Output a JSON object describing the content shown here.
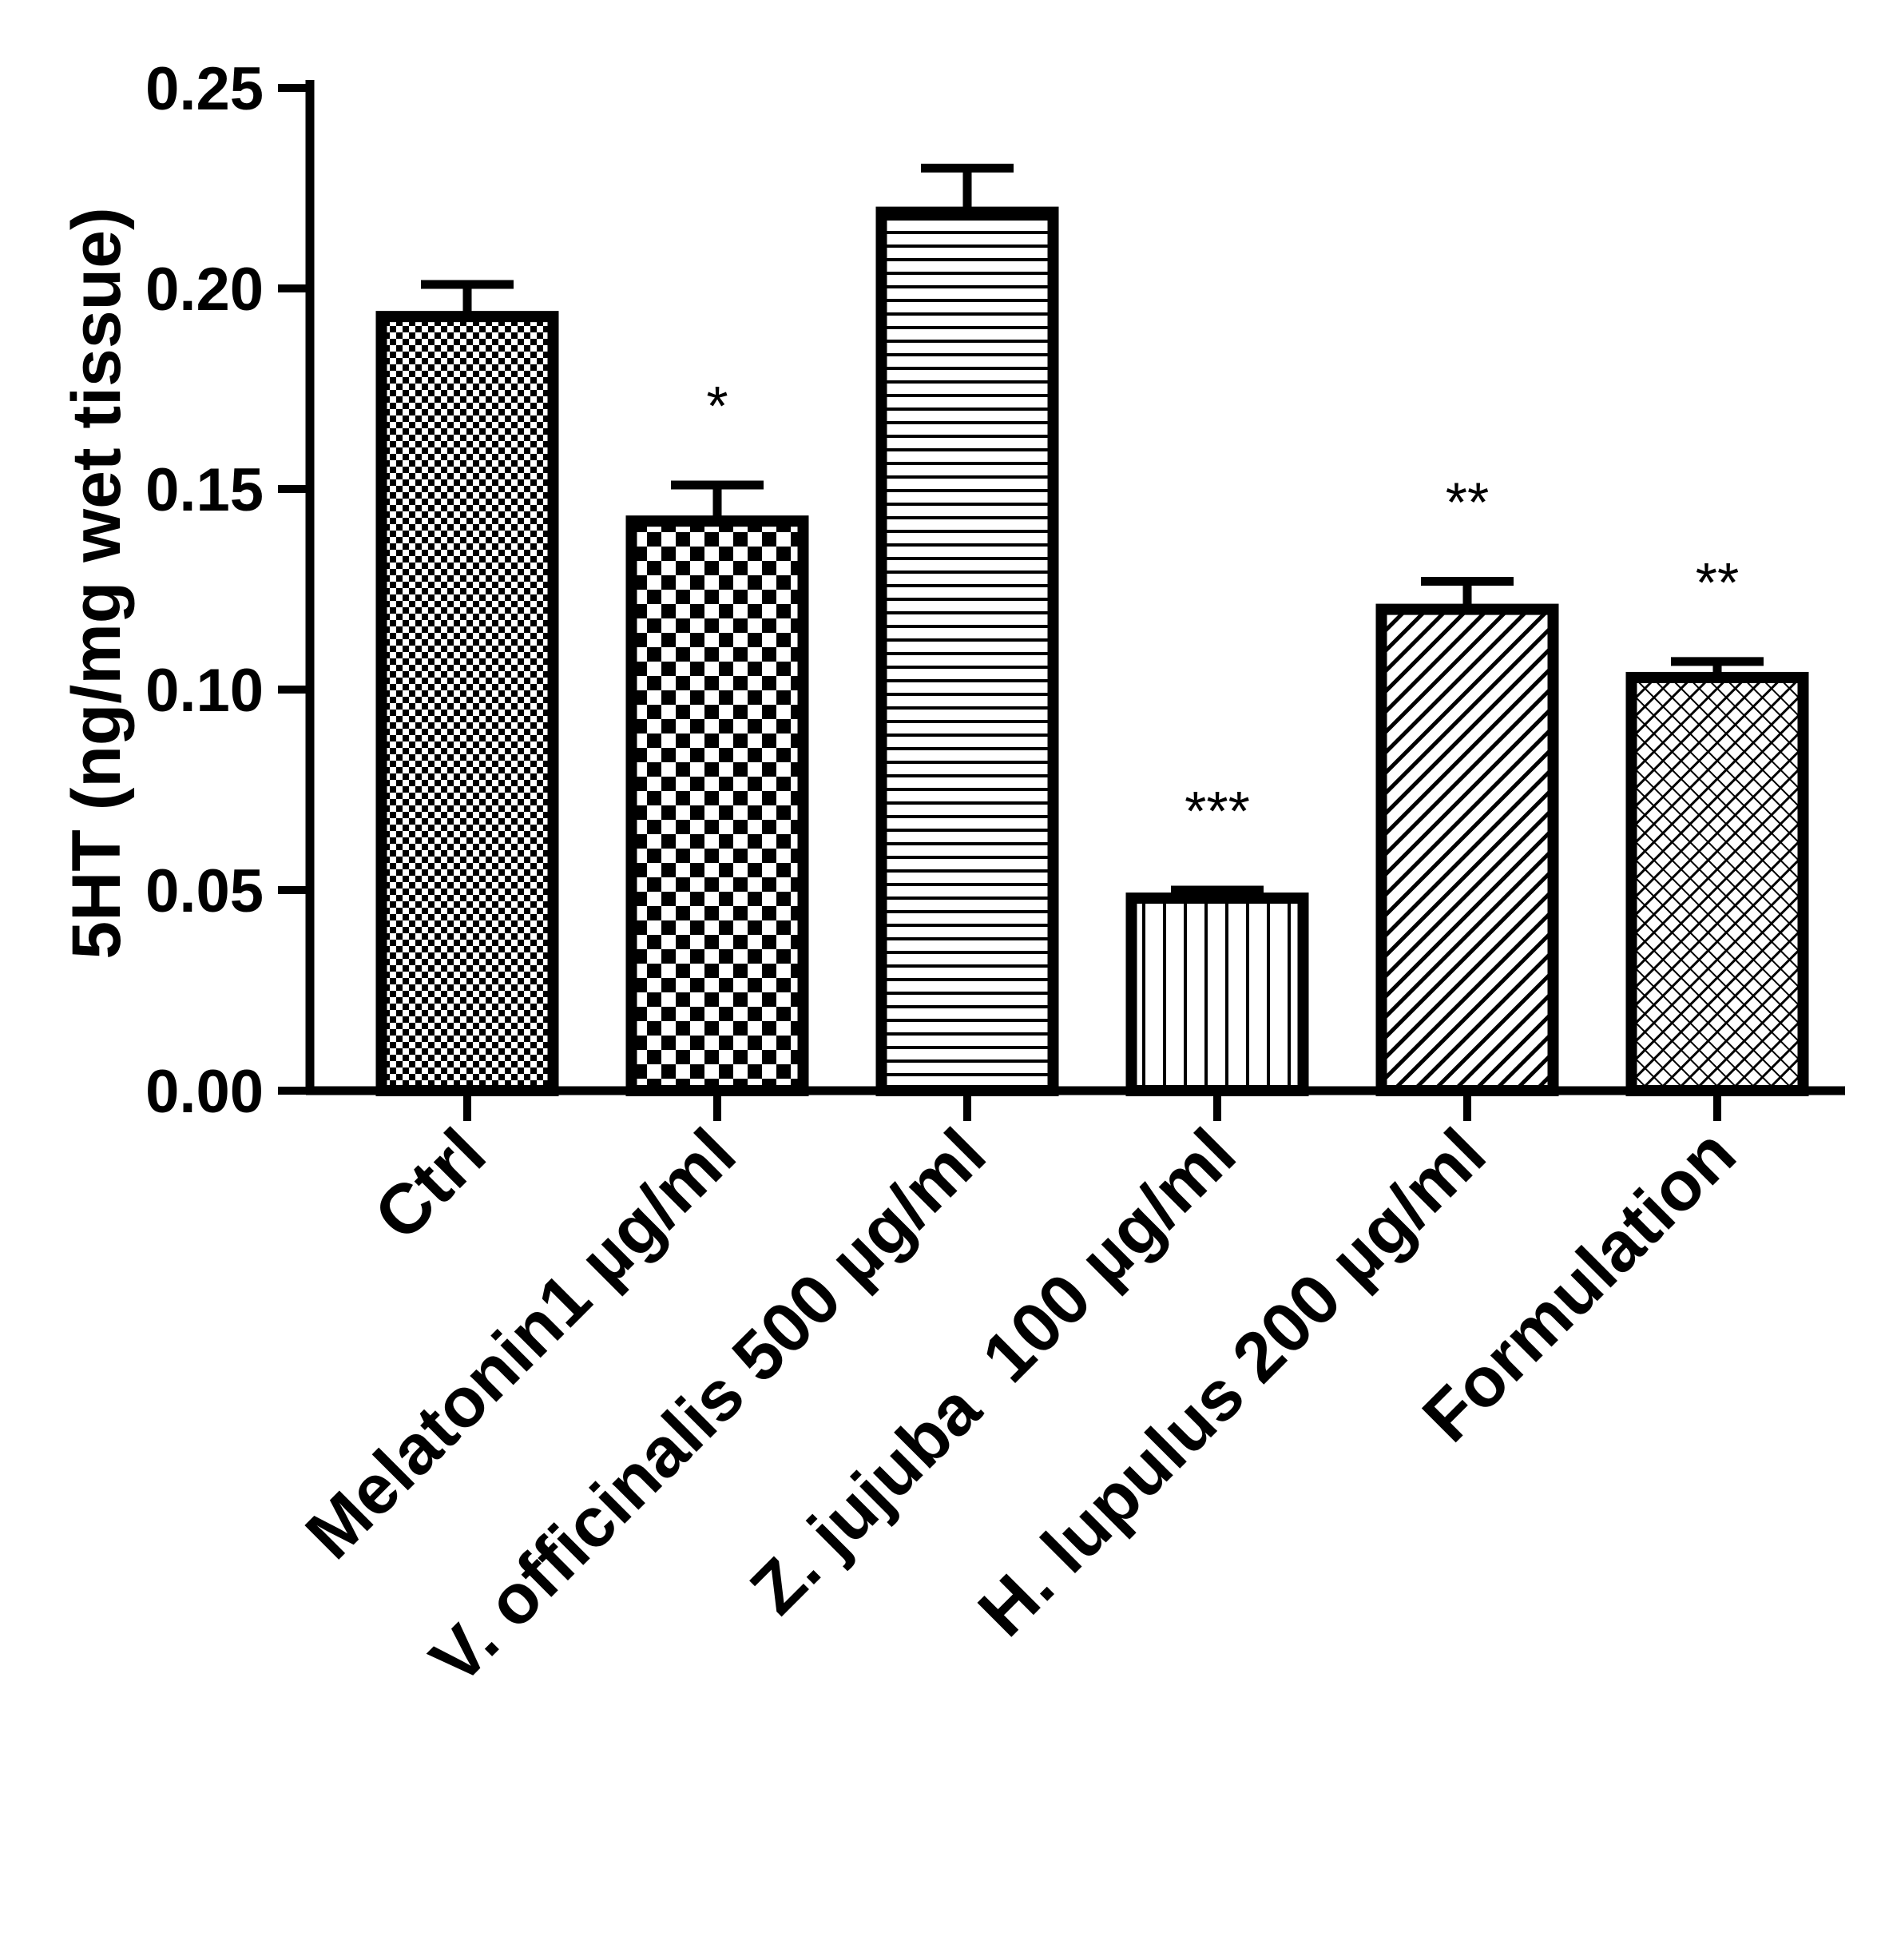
{
  "chart_data": {
    "type": "bar",
    "title": "",
    "xlabel": "",
    "ylabel": "5HT (ng/mg wet tissue)",
    "ylim": [
      0,
      0.25
    ],
    "yticks": [
      "0.00",
      "0.05",
      "0.10",
      "0.15",
      "0.20",
      "0.25"
    ],
    "grid": false,
    "categories": [
      "Ctrl",
      "Melatonin1 µg/ml",
      "V. officinalis 500 µg/ml",
      "Z. jujuba  100 µg/ml",
      "H. lupulus 200 µg/ml",
      "Formulation"
    ],
    "values": [
      0.193,
      0.142,
      0.219,
      0.048,
      0.12,
      0.103
    ],
    "errors": [
      0.008,
      0.009,
      0.011,
      0.002,
      0.007,
      0.004
    ],
    "significance": [
      "",
      "*",
      "",
      "***",
      "**",
      "**"
    ],
    "patterns": [
      "fine-check",
      "check",
      "hlines",
      "vlines",
      "diag",
      "crosshatch"
    ],
    "colors": {
      "bar_stroke": "#000000",
      "background": "#ffffff"
    }
  }
}
